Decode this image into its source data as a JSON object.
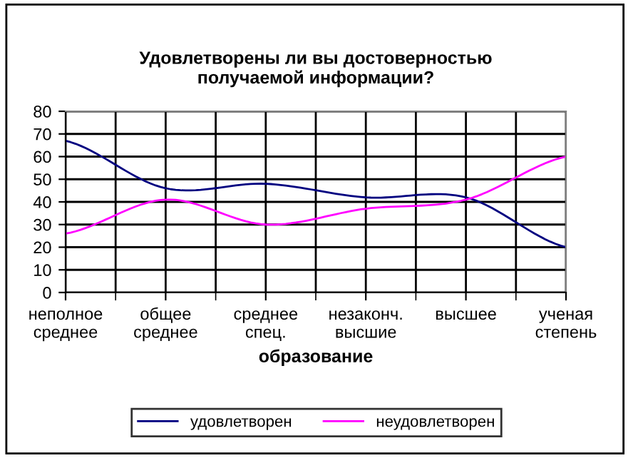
{
  "chart_data": {
    "type": "line",
    "title": "Удовлетворены ли вы достоверностью\nполучаемой информации?",
    "xlabel": "образование",
    "categories": [
      "неполное\nсреднее",
      "общее\nсреднее",
      "среднее\nспец.",
      "незаконч.\nвысшие",
      "высшее",
      "ученая\nстепень"
    ],
    "series": [
      {
        "name": "удовлетворен",
        "color": "#000080",
        "values": [
          67,
          46,
          48,
          42,
          42,
          20
        ]
      },
      {
        "name": "неудовлетворен",
        "color": "#ff00ff",
        "values": [
          26,
          41,
          30,
          37,
          41,
          60
        ]
      }
    ],
    "ylim": [
      0,
      80
    ],
    "yticks": [
      0,
      10,
      20,
      30,
      40,
      50,
      60,
      70,
      80
    ],
    "grid": true,
    "legend": "bottom",
    "marker": "none",
    "line_style": "solid"
  }
}
